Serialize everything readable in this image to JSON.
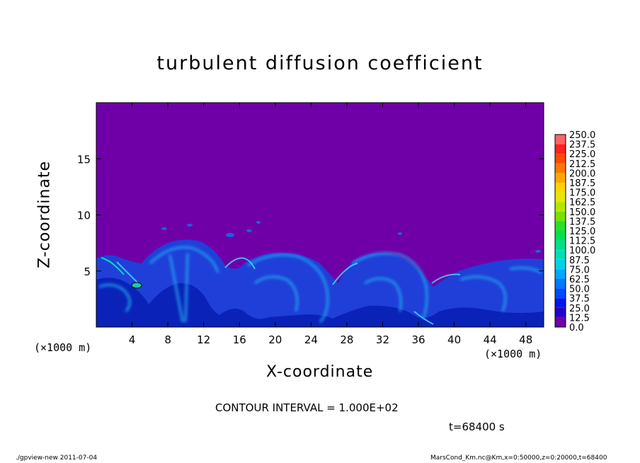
{
  "chart_data": {
    "type": "heatmap",
    "title": "turbulent diffusion coefficient",
    "xlabel": "X-coordinate",
    "ylabel": "Z-coordinate",
    "x_unit_left": "(×1000 m)",
    "x_unit_right": "(×1000 m)",
    "xlim": [
      0,
      50
    ],
    "ylim": [
      0,
      20
    ],
    "xticks": [
      4,
      8,
      12,
      16,
      20,
      24,
      28,
      32,
      36,
      40,
      44,
      48
    ],
    "yticks": [
      5,
      10,
      15
    ],
    "colorbar": {
      "levels": [
        "0.0",
        "12.5",
        "25.0",
        "37.5",
        "50.0",
        "62.5",
        "75.0",
        "87.5",
        "100.0",
        "112.5",
        "125.0",
        "137.5",
        "150.0",
        "162.5",
        "175.0",
        "187.5",
        "200.0",
        "212.5",
        "225.0",
        "237.5",
        "250.0"
      ],
      "colors": [
        "#6f00a8",
        "#2a00c8",
        "#0018e6",
        "#0048ff",
        "#0078ff",
        "#00a8ff",
        "#00d2e6",
        "#00e0b4",
        "#00e088",
        "#00e050",
        "#28e028",
        "#78e000",
        "#b4e600",
        "#e6e600",
        "#ffd200",
        "#ffa800",
        "#ff7800",
        "#ff4800",
        "#ff2020",
        "#ff6464"
      ]
    },
    "background_value_color": "#6f00a8",
    "annotation": "CONTOUR INTERVAL = 1.000E+02",
    "time": "t=68400 s"
  },
  "footer": {
    "left": "./gpview-new  2011-07-04",
    "right": "MarsCond_Km.nc@Km,x=0:50000,z=0:20000,t=68400"
  }
}
